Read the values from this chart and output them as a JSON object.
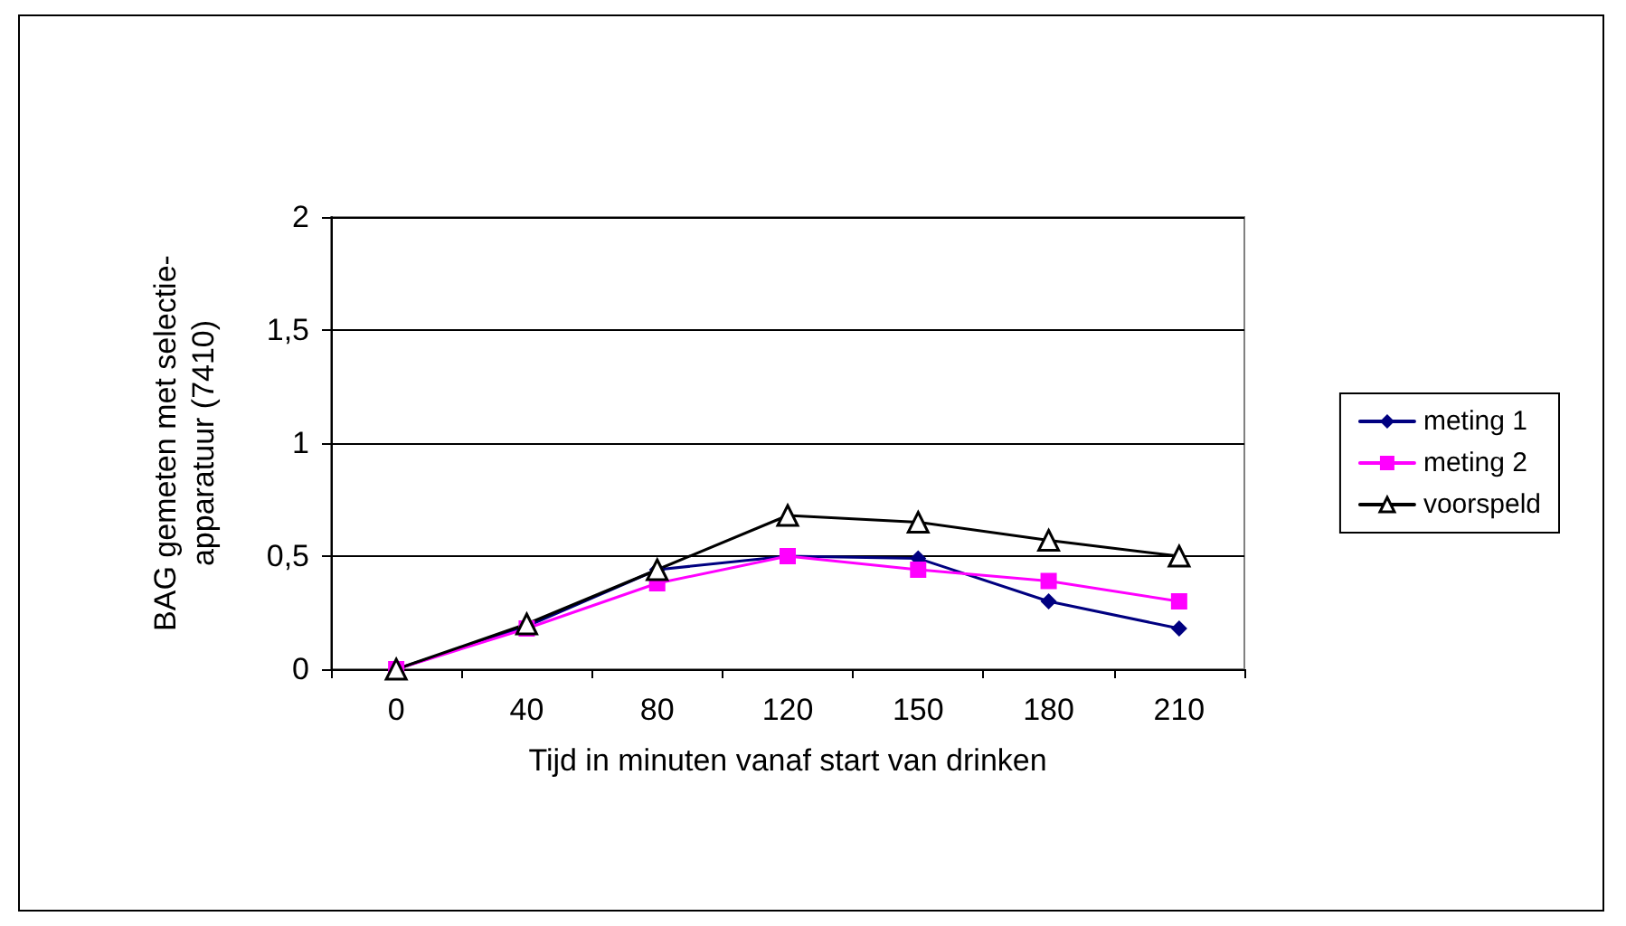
{
  "chart_data": {
    "type": "line",
    "xlabel": "Tijd in minuten vanaf start van drinken",
    "ylabel": "BAG gemeten met selectie-\napparatuur (7410)",
    "categories": [
      "0",
      "40",
      "80",
      "120",
      "150",
      "180",
      "210"
    ],
    "ylim": [
      0,
      2
    ],
    "yticks": [
      0,
      {
        "value": 0.5,
        "label": "0,5"
      },
      1,
      {
        "value": 1.5,
        "label": "1,5"
      },
      2
    ],
    "grid": "y",
    "legend": "right",
    "series": [
      {
        "name": "meting 1",
        "color": "#000080",
        "marker": "diamond",
        "values": [
          0,
          0.19,
          0.44,
          0.5,
          0.49,
          0.3,
          0.18
        ]
      },
      {
        "name": "meting 2",
        "color": "#ff00ff",
        "marker": "square",
        "values": [
          0,
          0.18,
          0.38,
          0.5,
          0.44,
          0.39,
          0.3
        ]
      },
      {
        "name": "voorspeld",
        "color": "#000000",
        "marker": "triangle",
        "values": [
          0,
          0.2,
          0.44,
          0.68,
          0.65,
          0.57,
          0.5
        ]
      }
    ]
  }
}
